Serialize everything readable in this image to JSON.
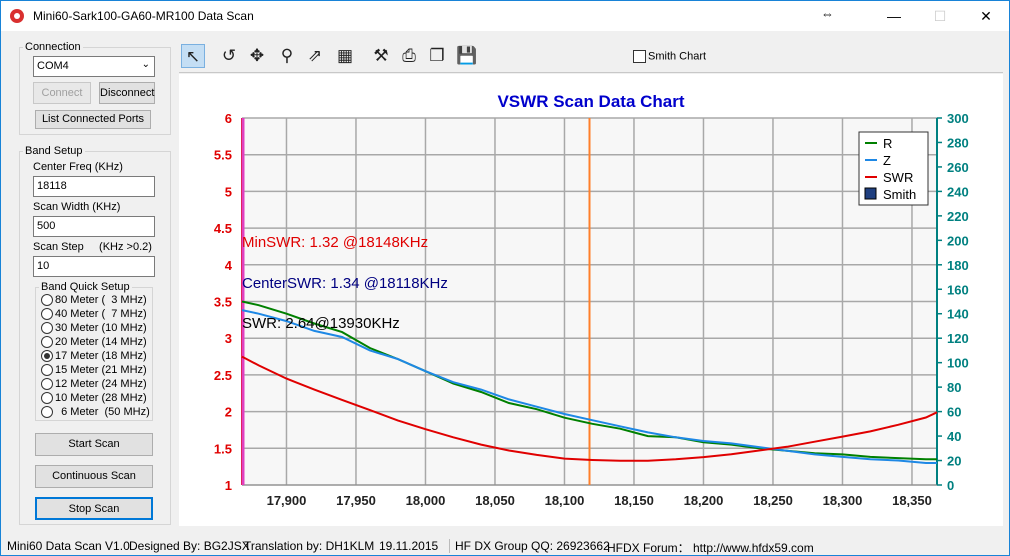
{
  "window": {
    "title": "Mini60-Sark100-GA60-MR100 Data Scan",
    "minimize": "—",
    "maximize": "☐",
    "close": "✕",
    "resize_glyph": "⇔"
  },
  "connection": {
    "group_label": "Connection",
    "port": "COM4",
    "connect_label": "Connect",
    "disconnect_label": "Disconnect",
    "list_ports_label": "List Connected Ports"
  },
  "band_setup": {
    "group_label": "Band Setup",
    "center_freq_label": "Center Freq  (KHz)",
    "center_freq_value": "18118",
    "scan_width_label": "Scan Width   (KHz)",
    "scan_width_value": "500",
    "scan_step_label": "Scan Step     (KHz >0.2)",
    "scan_step_value": "10",
    "quick_setup_label": "Band Quick Setup",
    "bands": [
      {
        "label": "80 Meter (  3 MHz)",
        "checked": false
      },
      {
        "label": "40 Meter (  7 MHz)",
        "checked": false
      },
      {
        "label": "30 Meter (10 MHz)",
        "checked": false
      },
      {
        "label": "20 Meter (14 MHz)",
        "checked": false
      },
      {
        "label": "17 Meter (18 MHz)",
        "checked": true
      },
      {
        "label": "15 Meter (21 MHz)",
        "checked": false
      },
      {
        "label": "12 Meter (24 MHz)",
        "checked": false
      },
      {
        "label": "10 Meter (28 MHz)",
        "checked": false
      },
      {
        "label": "  6 Meter  (50 MHz)",
        "checked": false
      }
    ]
  },
  "actions": {
    "start_scan": "Start Scan",
    "continuous_scan": "Continuous Scan",
    "stop_scan": "Stop Scan"
  },
  "toolbar": {
    "tools": [
      {
        "name": "pointer-icon",
        "glyph": "↖"
      },
      {
        "name": "undo-icon",
        "glyph": "↺"
      },
      {
        "name": "pan-icon",
        "glyph": "✥"
      },
      {
        "name": "zoom-icon",
        "glyph": "⚲"
      },
      {
        "name": "export-icon",
        "glyph": "⇗"
      },
      {
        "name": "data-icon",
        "glyph": "▦"
      },
      {
        "name": "properties-icon",
        "glyph": "⚒"
      },
      {
        "name": "print-icon",
        "glyph": "⎙"
      },
      {
        "name": "copy-icon",
        "glyph": "❐"
      },
      {
        "name": "save-icon",
        "glyph": "💾"
      }
    ],
    "smith_chart_label": "Smith Chart"
  },
  "chart_data": {
    "type": "line",
    "title": "VSWR Scan Data Chart",
    "title_color": "#0000cc",
    "x_ticks": [
      "17,900",
      "17,950",
      "18,000",
      "18,050",
      "18,100",
      "18,150",
      "18,200",
      "18,250",
      "18,300",
      "18,350"
    ],
    "x_tick_values": [
      17900,
      17950,
      18000,
      18050,
      18100,
      18150,
      18200,
      18250,
      18300,
      18350
    ],
    "xlim": [
      17868,
      18368
    ],
    "left_ticks": [
      "1",
      "1.5",
      "2",
      "2.5",
      "3",
      "3.5",
      "4",
      "4.5",
      "5",
      "5.5",
      "6"
    ],
    "left_ylim": [
      1,
      6
    ],
    "left_color": "#e00000",
    "right_ticks": [
      "0",
      "20",
      "40",
      "60",
      "80",
      "100",
      "120",
      "140",
      "160",
      "180",
      "200",
      "220",
      "240",
      "260",
      "280",
      "300"
    ],
    "right_ylim": [
      0,
      300
    ],
    "right_color": "#008080",
    "grid": true,
    "center_marker": 18118,
    "start_marker": 17868,
    "legend_position": "top-right",
    "legend": [
      {
        "label": "R",
        "color": "#008000",
        "kind": "line"
      },
      {
        "label": "Z",
        "color": "#1e88e5",
        "kind": "line"
      },
      {
        "label": "SWR",
        "color": "#e00000",
        "kind": "line"
      },
      {
        "label": "Smith",
        "color": "#1f3f7f",
        "kind": "box"
      }
    ],
    "annotations": [
      {
        "text": "MinSWR: 1.32 @18148KHz",
        "color": "#e00000"
      },
      {
        "text": "CenterSWR: 1.34 @18118KHz",
        "color": "#000080"
      },
      {
        "text": "SWR: 2.64@13930KHz",
        "color": "#000000"
      }
    ],
    "series": [
      {
        "name": "R",
        "axis": "right",
        "color": "#008000",
        "x": [
          17868,
          17880,
          17900,
          17920,
          17940,
          17960,
          17980,
          18000,
          18020,
          18040,
          18060,
          18080,
          18100,
          18120,
          18140,
          18160,
          18180,
          18200,
          18220,
          18240,
          18260,
          18280,
          18300,
          18320,
          18340,
          18360,
          18368
        ],
        "y": [
          150,
          147,
          140,
          132,
          125,
          112,
          103,
          93,
          83,
          76,
          67,
          62,
          55,
          50,
          46,
          40,
          39,
          35,
          33,
          30,
          28,
          26,
          25,
          23,
          22,
          21,
          21
        ]
      },
      {
        "name": "Z",
        "axis": "right",
        "color": "#1e88e5",
        "x": [
          17868,
          17880,
          17900,
          17920,
          17940,
          17960,
          17980,
          18000,
          18020,
          18040,
          18060,
          18080,
          18100,
          18120,
          18140,
          18160,
          18180,
          18200,
          18220,
          18240,
          18260,
          18280,
          18300,
          18320,
          18340,
          18360,
          18368
        ],
        "y": [
          143,
          140,
          134,
          126,
          121,
          110,
          103,
          93,
          84,
          78,
          70,
          64,
          58,
          53,
          48,
          43,
          39,
          36,
          34,
          31,
          28,
          25,
          23,
          21,
          20,
          18,
          18
        ]
      },
      {
        "name": "SWR",
        "axis": "left",
        "color": "#e00000",
        "x": [
          17868,
          17880,
          17900,
          17920,
          17940,
          17960,
          17980,
          18000,
          18020,
          18040,
          18060,
          18080,
          18100,
          18120,
          18140,
          18160,
          18180,
          18200,
          18220,
          18240,
          18260,
          18280,
          18300,
          18320,
          18340,
          18360,
          18368
        ],
        "y": [
          2.75,
          2.63,
          2.45,
          2.3,
          2.16,
          2.02,
          1.88,
          1.76,
          1.65,
          1.55,
          1.47,
          1.41,
          1.36,
          1.34,
          1.33,
          1.33,
          1.35,
          1.38,
          1.42,
          1.47,
          1.52,
          1.59,
          1.66,
          1.73,
          1.82,
          1.92,
          1.99
        ]
      }
    ]
  },
  "status": {
    "version": "Mini60 Data Scan V1.0",
    "designer": "Designed By: BG2JSX",
    "translation": "Translation by: DH1KLM",
    "date": "19.11.2015",
    "group": "HF DX Group QQ: 26923662",
    "forum": "HFDX Forum：  http://www.hfdx59.com"
  }
}
